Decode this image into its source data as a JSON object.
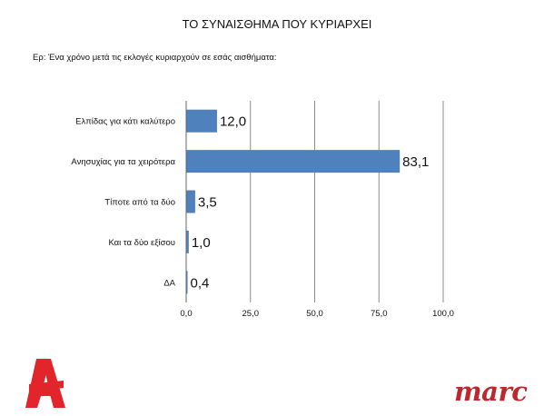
{
  "header": {
    "title": "ΤΟ ΣΥΝΑΙΣΘΗΜΑ ΠΟΥ ΚΥΡΙΑΡΧΕΙ",
    "question": "Ερ: Ένα χρόνο μετά τις εκλογές κυριαρχούν σε εσάς αισθήματα:"
  },
  "chart_data": {
    "type": "bar",
    "orientation": "horizontal",
    "categories": [
      "Ελπίδας για κάτι καλύτερο",
      "Ανησυχίας για τα χειρότερα",
      "Τίποτε από τα δύο",
      "Και τα δύο εξίσου",
      "ΔΑ"
    ],
    "values": [
      12.0,
      83.1,
      3.5,
      1.0,
      0.4
    ],
    "value_labels": [
      "12,0",
      "83,1",
      "3,5",
      "1,0",
      "0,4"
    ],
    "xlim": [
      0,
      100
    ],
    "ticks": [
      0,
      25,
      50,
      75,
      100
    ],
    "tick_labels": [
      "0,0",
      "25,0",
      "50,0",
      "75,0",
      "100,0"
    ],
    "grid": "vertical",
    "bar_color": "#4f81bd"
  },
  "logos": {
    "alpha": "alpha-tv-logo",
    "marc": "marc"
  }
}
